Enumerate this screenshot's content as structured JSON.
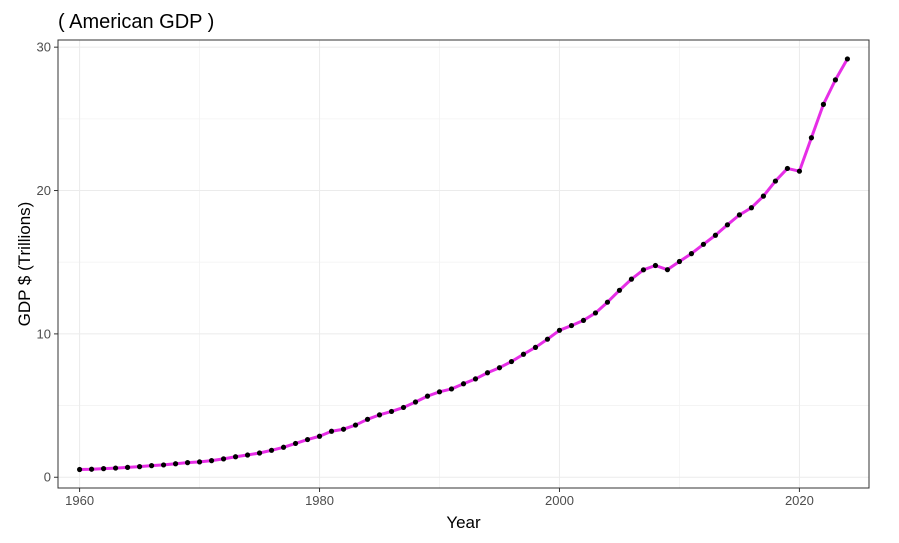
{
  "chart_data": {
    "type": "line",
    "title": "( American GDP )",
    "xlabel": "Year",
    "ylabel": "GDP $ (Trillions)",
    "xlim": [
      1958.2,
      2025.8
    ],
    "ylim": [
      -0.75,
      30.5
    ],
    "x_ticks": [
      1960,
      1980,
      2000,
      2020
    ],
    "y_ticks": [
      0,
      10,
      20,
      30
    ],
    "grid": true,
    "line_color": "#e62ee6",
    "point_color": "#000000",
    "series": [
      {
        "x": [
          1960,
          1961,
          1962,
          1963,
          1964,
          1965,
          1966,
          1967,
          1968,
          1969,
          1970,
          1971,
          1972,
          1973,
          1974,
          1975,
          1976,
          1977,
          1978,
          1979,
          1980,
          1981,
          1982,
          1983,
          1984,
          1985,
          1986,
          1987,
          1988,
          1989,
          1990,
          1991,
          1992,
          1993,
          1994,
          1995,
          1996,
          1997,
          1998,
          1999,
          2000,
          2001,
          2002,
          2003,
          2004,
          2005,
          2006,
          2007,
          2008,
          2009,
          2010,
          2011,
          2012,
          2013,
          2014,
          2015,
          2016,
          2017,
          2018,
          2019,
          2020,
          2021,
          2022,
          2023,
          2024
        ],
        "values": [
          0.54,
          0.56,
          0.6,
          0.64,
          0.69,
          0.74,
          0.81,
          0.86,
          0.94,
          1.02,
          1.07,
          1.16,
          1.28,
          1.43,
          1.55,
          1.69,
          1.88,
          2.09,
          2.36,
          2.63,
          2.86,
          3.21,
          3.35,
          3.64,
          4.04,
          4.35,
          4.59,
          4.87,
          5.25,
          5.66,
          5.96,
          6.16,
          6.52,
          6.86,
          7.29,
          7.64,
          8.07,
          8.58,
          9.06,
          9.63,
          10.25,
          10.58,
          10.94,
          11.46,
          12.21,
          13.04,
          13.82,
          14.47,
          14.77,
          14.48,
          15.05,
          15.6,
          16.25,
          16.88,
          17.61,
          18.3,
          18.8,
          19.61,
          20.66,
          21.54,
          21.35,
          23.68,
          26.01,
          27.72,
          29.18
        ]
      }
    ]
  }
}
